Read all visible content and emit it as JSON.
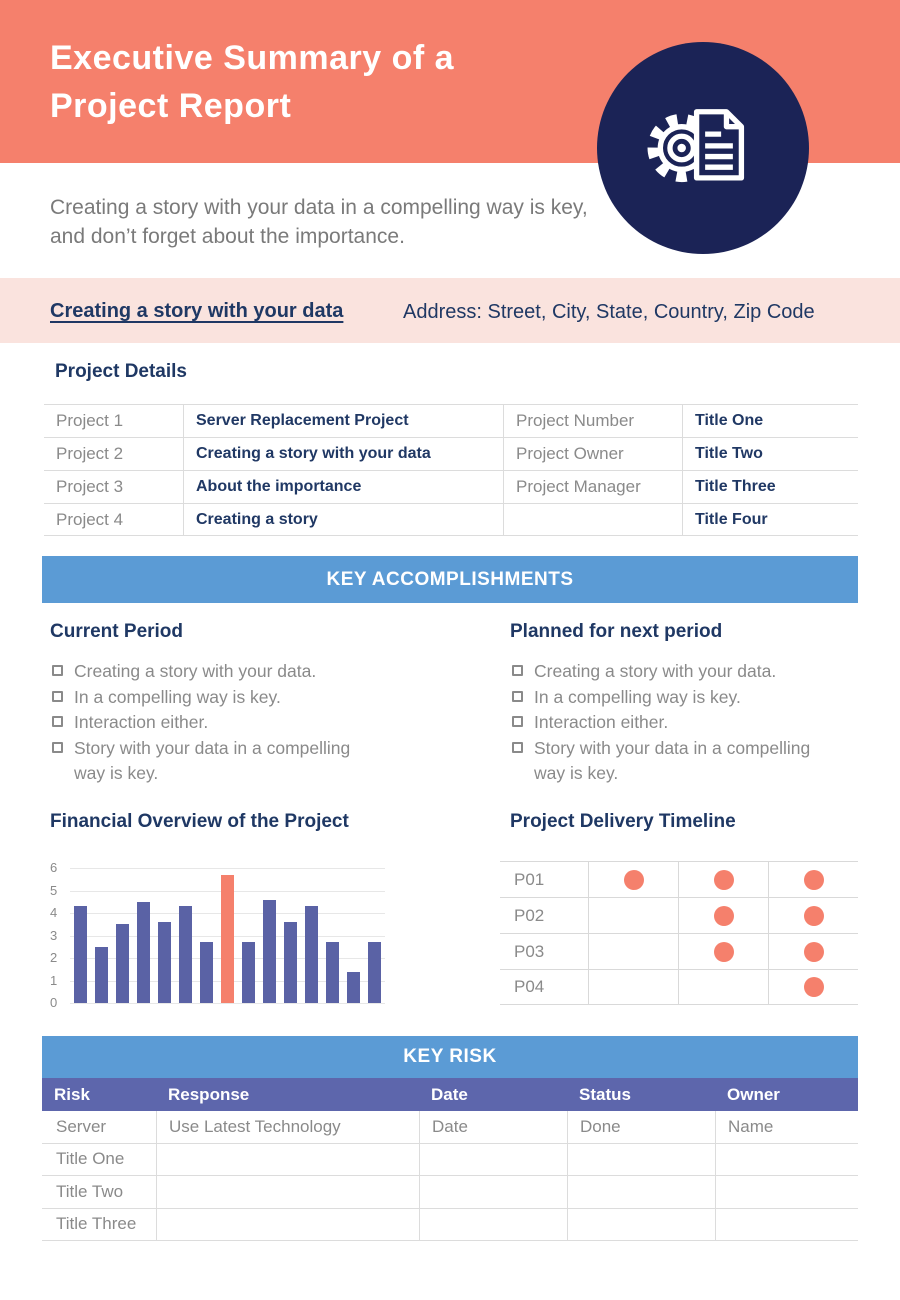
{
  "colors": {
    "coral": "#F5806C",
    "navy_circle": "#1B2356",
    "navy_text": "#1F3864",
    "pink_band": "#FAE3DE",
    "blue_banner": "#5B9BD5",
    "purple_header": "#5D66AC",
    "bar_purple": "#5A62A5",
    "gray_text": "#8A8A8A"
  },
  "header": {
    "title_lines": [
      "Executive Summary of a",
      "Project Report"
    ],
    "icon": "gear-document-icon",
    "subtitle": "Creating a story with your data in a compelling way is key, and don’t forget about the importance."
  },
  "info_bar": {
    "link": "Creating a story with your data",
    "address": "Address: Street, City, State, Country, Zip Code"
  },
  "project_details": {
    "heading": "Project Details",
    "rows": [
      {
        "label": "Project 1",
        "value": "Server Replacement Project",
        "label2": "Project Number",
        "value2": "Title One"
      },
      {
        "label": "Project 2",
        "value": "Creating a story with your data",
        "label2": "Project Owner",
        "value2": "Title Two"
      },
      {
        "label": "Project 3",
        "value": "About the importance",
        "label2": "Project Manager",
        "value2": "Title Three"
      },
      {
        "label": "Project 4",
        "value": "Creating a story",
        "label2": "",
        "value2": "Title Four"
      }
    ]
  },
  "accomplishments": {
    "banner": "KEY ACCOMPLISHMENTS",
    "bullet_icon": "empty-checkbox",
    "columns": [
      {
        "heading": "Current Period",
        "items": [
          "Creating a story with your data.",
          "In a compelling way is key.",
          "Interaction either.",
          "Story with your data in a compelling way is key."
        ]
      },
      {
        "heading": "Planned for next period",
        "items": [
          "Creating a story with your data.",
          "In a compelling way is key.",
          "Interaction either.",
          "Story with your data in a compelling way is key."
        ]
      }
    ]
  },
  "chart_data": {
    "type": "bar",
    "title": "Financial Overview of the Project",
    "values": [
      4.3,
      2.5,
      3.5,
      4.5,
      3.6,
      4.3,
      2.7,
      5.7,
      2.7,
      4.6,
      3.6,
      4.3,
      2.7,
      1.4,
      2.7
    ],
    "highlight_index": 7,
    "xlabel": "",
    "ylabel": "",
    "ylim": [
      0,
      6
    ],
    "yticks": [
      0,
      1,
      2,
      3,
      4,
      5,
      6
    ],
    "grid": true,
    "legend": false,
    "bar_color": "#5A62A5",
    "highlight_color": "#F5806C"
  },
  "timeline": {
    "heading": "Project Delivery Timeline",
    "dot_icon": "filled-circle",
    "rows": [
      {
        "label": "P01",
        "dots": [
          1,
          1,
          1
        ]
      },
      {
        "label": "P02",
        "dots": [
          0,
          1,
          1
        ]
      },
      {
        "label": "P03",
        "dots": [
          0,
          1,
          1
        ]
      },
      {
        "label": "P04",
        "dots": [
          0,
          0,
          1
        ]
      }
    ]
  },
  "key_risk": {
    "banner": "KEY RISK",
    "headers": [
      "Risk",
      "Response",
      "Date",
      "Status",
      "Owner"
    ],
    "rows": [
      [
        "Server",
        "Use Latest Technology",
        "Date",
        "Done",
        "Name"
      ],
      [
        "Title One",
        "",
        "",
        "",
        ""
      ],
      [
        "Title Two",
        "",
        "",
        "",
        ""
      ],
      [
        "Title Three",
        "",
        "",
        "",
        ""
      ]
    ]
  }
}
